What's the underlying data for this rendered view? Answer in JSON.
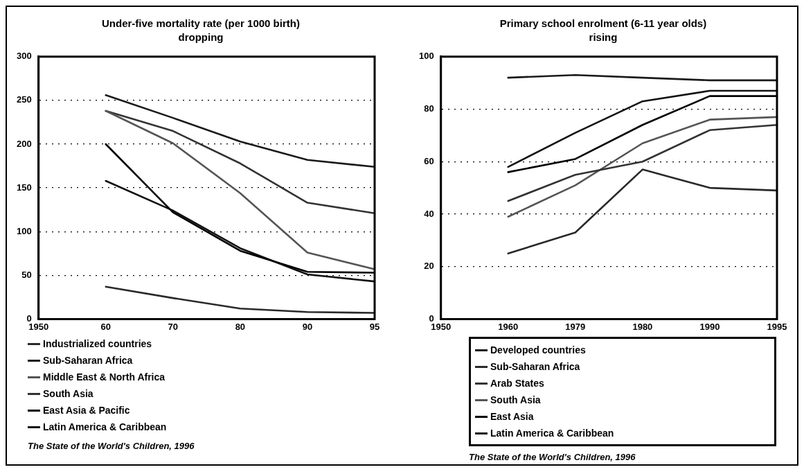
{
  "chart_data": [
    {
      "type": "line",
      "title": "Under-five mortality rate (per 1000 birth) dropping",
      "categories": [
        "1950",
        "60",
        "70",
        "80",
        "90",
        "95"
      ],
      "ylim": [
        0,
        300
      ],
      "yticks": [
        0,
        50,
        100,
        150,
        200,
        250,
        300
      ],
      "grid": "y",
      "legend": "bottom",
      "marker": "none",
      "line_style": "solid",
      "annotations": [
        "The State of the World's Children, 1996"
      ],
      "series": [
        {
          "name": "Industrialized countries",
          "color": "#2a2a2a",
          "values": [
            null,
            37,
            24,
            12,
            8,
            7
          ]
        },
        {
          "name": "Sub-Saharan Africa",
          "color": "#1a1a1a",
          "values": [
            null,
            256,
            230,
            203,
            182,
            174
          ]
        },
        {
          "name": "Middle East & North Africa",
          "color": "#555555",
          "values": [
            null,
            238,
            201,
            144,
            76,
            57
          ]
        },
        {
          "name": "South Asia",
          "color": "#333333",
          "values": [
            null,
            238,
            215,
            178,
            133,
            121
          ]
        },
        {
          "name": "East Asia & Pacific",
          "color": "#000000",
          "values": [
            null,
            200,
            122,
            78,
            54,
            53
          ]
        },
        {
          "name": "Latin America & Caribbean",
          "color": "#111111",
          "values": [
            null,
            158,
            124,
            81,
            51,
            43
          ]
        }
      ]
    },
    {
      "type": "line",
      "title": "Primary school enrolment (6-11 year olds) rising",
      "categories": [
        "1950",
        "1960",
        "1979",
        "1980",
        "1990",
        "1995"
      ],
      "ylim": [
        0,
        100
      ],
      "yticks": [
        0,
        20,
        40,
        60,
        80,
        100
      ],
      "grid": "y",
      "legend": "bottom",
      "marker": "none",
      "line_style": "solid",
      "annotations": [
        "The State of the World's Children, 1996"
      ],
      "series": [
        {
          "name": "Developed countries",
          "color": "#1a1a1a",
          "values": [
            null,
            92,
            93,
            92,
            91,
            91
          ]
        },
        {
          "name": "Sub-Saharan Africa",
          "color": "#2a2a2a",
          "values": [
            null,
            25,
            33,
            57,
            50,
            49
          ]
        },
        {
          "name": "Arab States",
          "color": "#333333",
          "values": [
            null,
            45,
            55,
            60,
            72,
            74
          ]
        },
        {
          "name": "South Asia",
          "color": "#555555",
          "values": [
            null,
            39,
            51,
            67,
            76,
            77
          ]
        },
        {
          "name": "East Asia",
          "color": "#000000",
          "values": [
            null,
            56,
            61,
            74,
            85,
            85
          ]
        },
        {
          "name": "Latin America & Caribbean",
          "color": "#111111",
          "values": [
            null,
            58,
            71,
            83,
            87,
            87
          ]
        }
      ]
    }
  ]
}
